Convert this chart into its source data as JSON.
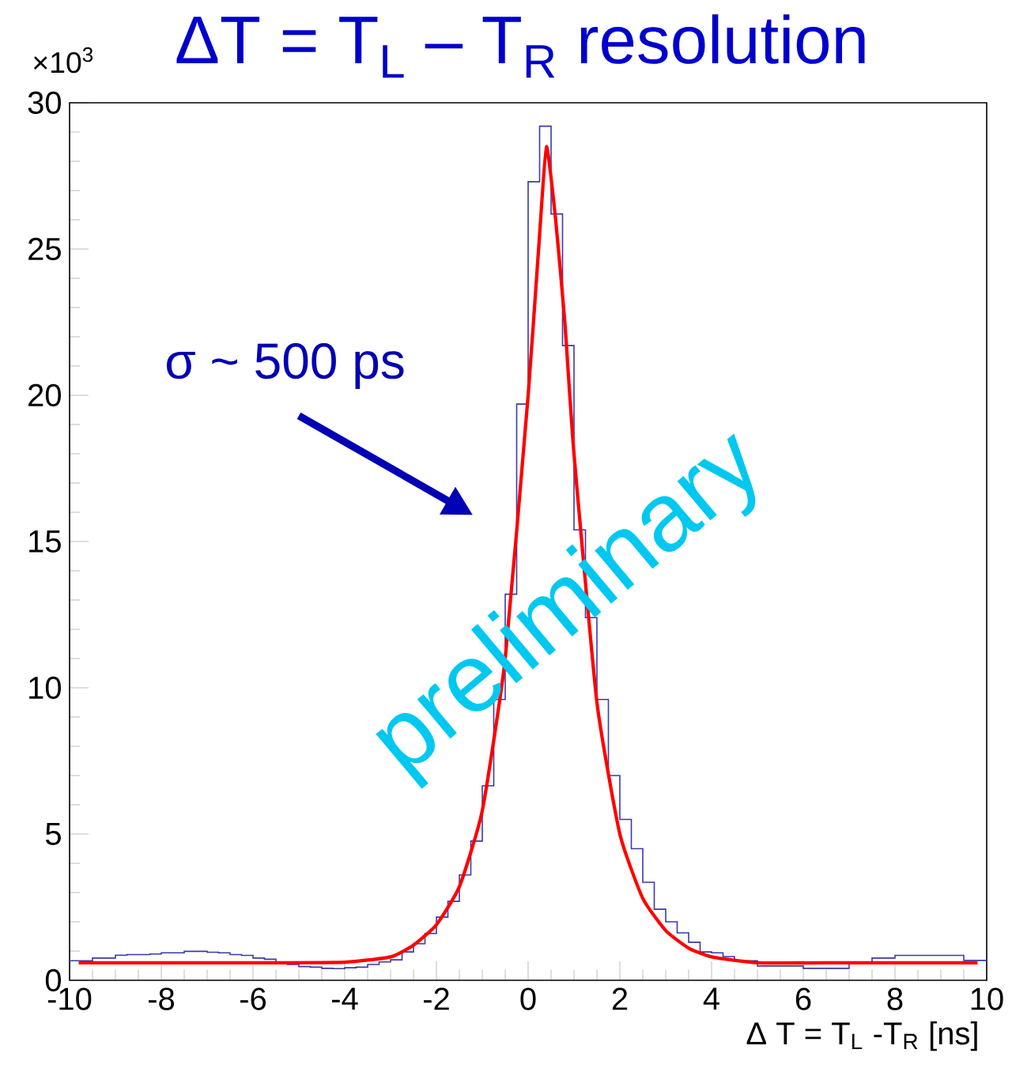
{
  "chart_data": {
    "type": "histogram",
    "title": "ΔT = T$_{L}$ – T$_{R}$ resolution",
    "xlabel": "Δ T = T$_{L}$ -T$_{R}$ [ns]",
    "bins": [
      -10,
      -9.75,
      -9.5,
      -9.25,
      -9,
      -8.75,
      -8.5,
      -8.25,
      -8,
      -7.75,
      -7.5,
      -7.25,
      -7,
      -6.75,
      -6.5,
      -6.25,
      -6,
      -5.75,
      -5.5,
      -5.25,
      -5,
      -4.75,
      -4.5,
      -4.25,
      -4,
      -3.75,
      -3.5,
      -3.25,
      -3,
      -2.75,
      -2.5,
      -2.25,
      -2,
      -1.75,
      -1.5,
      -1.25,
      -1,
      -0.75,
      -0.5,
      -0.25,
      0,
      0.25,
      0.5,
      0.75,
      1,
      1.25,
      1.5,
      1.75,
      2,
      2.25,
      2.5,
      2.75,
      3,
      3.25,
      3.5,
      3.75,
      4,
      4.25,
      4.5,
      4.75,
      5,
      5.25,
      5.5,
      5.75,
      6,
      6.25,
      6.5,
      6.75,
      7,
      7.25,
      7.5,
      7.75,
      8,
      8.25,
      8.5,
      8.75,
      9,
      9.25,
      9.5,
      9.75,
      10
    ],
    "values": [
      0.67,
      0.67,
      0.76,
      0.76,
      0.86,
      0.88,
      0.88,
      0.9,
      0.94,
      0.94,
      0.99,
      0.99,
      0.96,
      0.94,
      0.88,
      0.85,
      0.76,
      0.72,
      0.6,
      0.54,
      0.47,
      0.45,
      0.41,
      0.4,
      0.43,
      0.45,
      0.54,
      0.63,
      0.7,
      0.97,
      1.25,
      1.6,
      2.16,
      2.7,
      3.6,
      4.76,
      6.65,
      9.6,
      13.2,
      19.7,
      27.3,
      29.2,
      26.2,
      21.7,
      15.4,
      12.4,
      9.6,
      7.0,
      5.5,
      4.5,
      3.35,
      2.43,
      2.0,
      1.62,
      1.3,
      0.97,
      0.94,
      0.81,
      0.67,
      0.67,
      0.49,
      0.49,
      0.49,
      0.49,
      0.41,
      0.41,
      0.41,
      0.41,
      0.6,
      0.63,
      0.76,
      0.76,
      0.85,
      0.85,
      0.85,
      0.85,
      0.85,
      0.85,
      0.68,
      0.68
    ],
    "color": "#3a3aa8",
    "series": [
      {
        "type": "line",
        "color": "#ff0000",
        "x": [
          -9.8,
          -6,
          -4,
          -3,
          -2.5,
          -2,
          -1.5,
          -1,
          -0.5,
          0,
          0.25,
          0.4,
          0.6,
          0.8,
          1,
          1.5,
          2,
          2.5,
          3,
          3.5,
          4,
          5,
          7,
          9.8
        ],
        "values": [
          0.6,
          0.6,
          0.62,
          0.8,
          1.2,
          1.9,
          3.2,
          5.8,
          11,
          20,
          25.5,
          28.5,
          26,
          22.5,
          18,
          9.5,
          5,
          2.8,
          1.7,
          1.1,
          0.8,
          0.6,
          0.6,
          0.6
        ]
      }
    ],
    "xlim": [
      -10,
      10
    ],
    "ylim": [
      0,
      30
    ],
    "xticks": [
      -10,
      -8,
      -6,
      -4,
      -2,
      0,
      2,
      4,
      6,
      8,
      10
    ],
    "yticks": [
      0,
      5,
      10,
      15,
      20,
      25,
      30
    ],
    "annotations": [
      "×10$^{3}$",
      "σ ~ 500 ps",
      "preliminary"
    ]
  }
}
